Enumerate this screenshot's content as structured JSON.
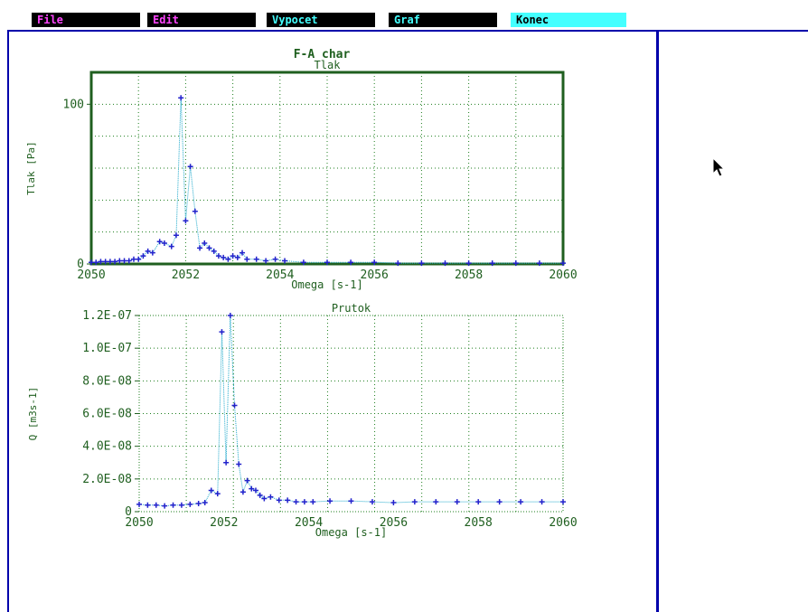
{
  "menu": {
    "items": [
      {
        "label": "File",
        "color": "#ff44ff"
      },
      {
        "label": "Edit",
        "color": "#ff44ff"
      },
      {
        "label": "Vypocet",
        "color": "#44ffff"
      },
      {
        "label": "Graf",
        "color": "#44ffff"
      },
      {
        "label": "Konec",
        "color": "#000000",
        "bg": "#44ffff"
      }
    ]
  },
  "figure_title": "F-A char",
  "colors": {
    "frame": "#0000aa",
    "plot_border_top": "#1f5f1f",
    "plot_border_bottom": "#1f7f1f",
    "grid": "#1f7f1f",
    "marker": "#2222cc",
    "line": "#22aacc",
    "text": "#1f5f1f"
  },
  "chart_data": [
    {
      "type": "line",
      "title": "Tlak",
      "xlabel": "Omega [s-1]",
      "ylabel": "Tlak [Pa]",
      "xlim": [
        2050,
        2060
      ],
      "ylim": [
        0,
        120
      ],
      "xticks": [
        "2050",
        "2052",
        "2054",
        "2056",
        "2058",
        "2060"
      ],
      "yticks": [
        {
          "value": 0,
          "label": "0"
        },
        {
          "value": 100,
          "label": "100"
        }
      ],
      "grid": true,
      "series": [
        {
          "x": [
            2050.0,
            2050.1,
            2050.2,
            2050.3,
            2050.4,
            2050.5,
            2050.6,
            2050.7,
            2050.8,
            2050.9,
            2051.0,
            2051.1,
            2051.2,
            2051.3,
            2051.45,
            2051.55,
            2051.7,
            2051.8,
            2051.9,
            2052.0,
            2052.1,
            2052.2,
            2052.3,
            2052.4,
            2052.5,
            2052.6,
            2052.7,
            2052.8,
            2052.9,
            2053.0,
            2053.1,
            2053.2,
            2053.3,
            2053.5,
            2053.7,
            2053.9,
            2054.1,
            2054.5,
            2055.0,
            2055.5,
            2056.0,
            2056.5,
            2057.0,
            2057.5,
            2058.0,
            2058.5,
            2059.0,
            2059.5,
            2060.0
          ],
          "y": [
            1,
            1,
            1.5,
            1.5,
            1.5,
            1.5,
            2,
            2,
            2,
            3,
            3,
            5,
            8,
            7,
            14,
            13,
            11,
            18,
            104,
            27,
            61,
            33,
            10,
            13,
            10,
            8,
            5,
            4,
            3,
            5,
            4,
            7,
            3,
            3,
            2,
            3,
            2,
            1,
            1,
            1,
            1,
            0.5,
            0.5,
            0.5,
            0.5,
            0.5,
            0.5,
            0.5,
            0.5
          ]
        }
      ]
    },
    {
      "type": "line",
      "title": "Prutok",
      "xlabel": "Omega [s-1]",
      "ylabel": "Q [m3s-1]",
      "xlim": [
        2050,
        2060
      ],
      "ylim": [
        0,
        1.2e-07
      ],
      "xticks": [
        "2050",
        "2052",
        "2054",
        "2056",
        "2058",
        "2060"
      ],
      "yticks": [
        {
          "value": 0,
          "label": "0"
        },
        {
          "value": 2e-08,
          "label": "2.0E-08"
        },
        {
          "value": 4e-08,
          "label": "4.0E-08"
        },
        {
          "value": 6e-08,
          "label": "6.0E-08"
        },
        {
          "value": 8e-08,
          "label": "8.0E-08"
        },
        {
          "value": 1e-07,
          "label": "1.0E-07"
        },
        {
          "value": 1.2e-07,
          "label": "1.2E-07"
        }
      ],
      "grid": true,
      "series": [
        {
          "x": [
            2050.0,
            2050.2,
            2050.4,
            2050.6,
            2050.8,
            2051.0,
            2051.2,
            2051.4,
            2051.55,
            2051.7,
            2051.85,
            2051.95,
            2052.05,
            2052.15,
            2052.25,
            2052.35,
            2052.45,
            2052.55,
            2052.65,
            2052.75,
            2052.85,
            2052.95,
            2053.1,
            2053.3,
            2053.5,
            2053.7,
            2053.9,
            2054.1,
            2054.5,
            2055.0,
            2055.5,
            2056.0,
            2056.5,
            2057.0,
            2057.5,
            2058.0,
            2058.5,
            2059.0,
            2059.5,
            2060.0
          ],
          "y": [
            4.5e-09,
            4e-09,
            4e-09,
            3.5e-09,
            4e-09,
            4e-09,
            4.5e-09,
            5e-09,
            5.5e-09,
            1.3e-08,
            1.1e-08,
            1.1e-07,
            3e-08,
            1.2e-07,
            6.5e-08,
            2.9e-08,
            1.2e-08,
            1.9e-08,
            1.4e-08,
            1.3e-08,
            1e-08,
            8e-09,
            9e-09,
            7e-09,
            7e-09,
            6e-09,
            6e-09,
            6e-09,
            6.5e-09,
            6.5e-09,
            6e-09,
            5.5e-09,
            6e-09,
            6e-09,
            6e-09,
            6e-09,
            6e-09,
            6e-09,
            6e-09,
            6e-09
          ]
        }
      ]
    }
  ],
  "cursor_icon": "mouse-pointer-arrow"
}
